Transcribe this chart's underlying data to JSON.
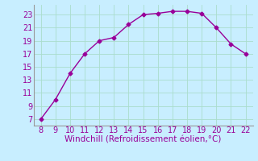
{
  "x": [
    8,
    9,
    10,
    11,
    12,
    13,
    14,
    15,
    16,
    17,
    18,
    19,
    20,
    21,
    22
  ],
  "y": [
    7,
    10,
    14,
    17,
    19,
    19.5,
    21.5,
    23,
    23.2,
    23.5,
    23.5,
    23.2,
    21,
    18.5,
    17
  ],
  "line_color": "#990099",
  "marker": "D",
  "marker_size": 2.5,
  "bg_color": "#c8eeff",
  "grid_color": "#aaddcc",
  "xlabel": "Windchill (Refroidissement éolien,°C)",
  "xlabel_color": "#990099",
  "tick_color": "#990099",
  "spine_color": "#999999",
  "xlim": [
    7.5,
    22.5
  ],
  "ylim": [
    6,
    24.5
  ],
  "xticks": [
    8,
    9,
    10,
    11,
    12,
    13,
    14,
    15,
    16,
    17,
    18,
    19,
    20,
    21,
    22
  ],
  "yticks": [
    7,
    9,
    11,
    13,
    15,
    17,
    19,
    21,
    23
  ],
  "xlabel_fontsize": 7.5,
  "tick_fontsize": 7
}
